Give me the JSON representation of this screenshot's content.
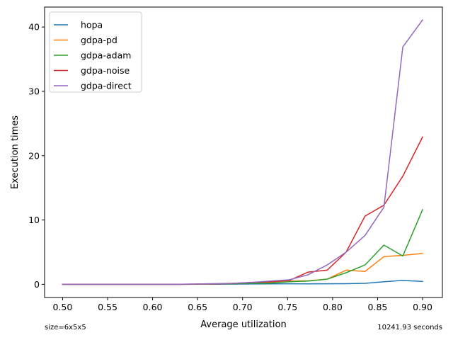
{
  "chart_data": {
    "type": "line",
    "xlabel": "Average utilization",
    "ylabel": "Execution times",
    "xlim": [
      0.48,
      0.922
    ],
    "ylim": [
      -2.05,
      43.1
    ],
    "x_ticks": [
      0.5,
      0.55,
      0.6,
      0.65,
      0.7,
      0.75,
      0.8,
      0.85,
      0.9
    ],
    "x_tick_labels": [
      "0.50",
      "0.55",
      "0.60",
      "0.65",
      "0.70",
      "0.75",
      "0.80",
      "0.85",
      "0.90"
    ],
    "y_ticks": [
      0,
      10,
      20,
      30,
      40
    ],
    "y_tick_labels": [
      "0",
      "10",
      "20",
      "30",
      "40"
    ],
    "grid": false,
    "legend_position": "top-left",
    "x": [
      0.5,
      0.521,
      0.542,
      0.563,
      0.584,
      0.605,
      0.626,
      0.647,
      0.668,
      0.689,
      0.71,
      0.731,
      0.752,
      0.773,
      0.794,
      0.815,
      0.836,
      0.857,
      0.878,
      0.9
    ],
    "series": [
      {
        "name": "hopa",
        "color": "#1f77b4",
        "values": [
          0,
          0,
          0,
          0,
          0,
          0,
          0,
          0.01,
          0.02,
          0.03,
          0.05,
          0.06,
          0.09,
          0.07,
          0.09,
          0.1,
          0.15,
          0.4,
          0.6,
          0.45
        ]
      },
      {
        "name": "gdpa-pd",
        "color": "#ff7f0e",
        "values": [
          0,
          0,
          0,
          0,
          0,
          0,
          0,
          0.02,
          0.05,
          0.1,
          0.2,
          0.3,
          0.5,
          0.55,
          0.8,
          2.2,
          2.0,
          4.3,
          4.5,
          4.8
        ]
      },
      {
        "name": "gdpa-adam",
        "color": "#2ca02c",
        "values": [
          0,
          0,
          0,
          0,
          0,
          0,
          0,
          0.02,
          0.05,
          0.1,
          0.15,
          0.2,
          0.4,
          0.5,
          0.8,
          1.8,
          3.0,
          6.1,
          4.4,
          11.6
        ]
      },
      {
        "name": "gdpa-noise",
        "color": "#d62728",
        "values": [
          0,
          0,
          0,
          0,
          0,
          0,
          0,
          0.03,
          0.08,
          0.15,
          0.3,
          0.4,
          0.6,
          1.9,
          2.2,
          5.0,
          10.6,
          12.3,
          16.8,
          22.9
        ]
      },
      {
        "name": "gdpa-direct",
        "color": "#9467bd",
        "values": [
          0,
          0,
          0,
          0,
          0,
          0,
          0,
          0.05,
          0.1,
          0.15,
          0.3,
          0.5,
          0.7,
          1.5,
          3.0,
          5.0,
          7.6,
          12.0,
          36.9,
          41.1
        ]
      }
    ]
  },
  "footer": {
    "left": "size=6x5x5",
    "right": "10241.93 seconds"
  }
}
